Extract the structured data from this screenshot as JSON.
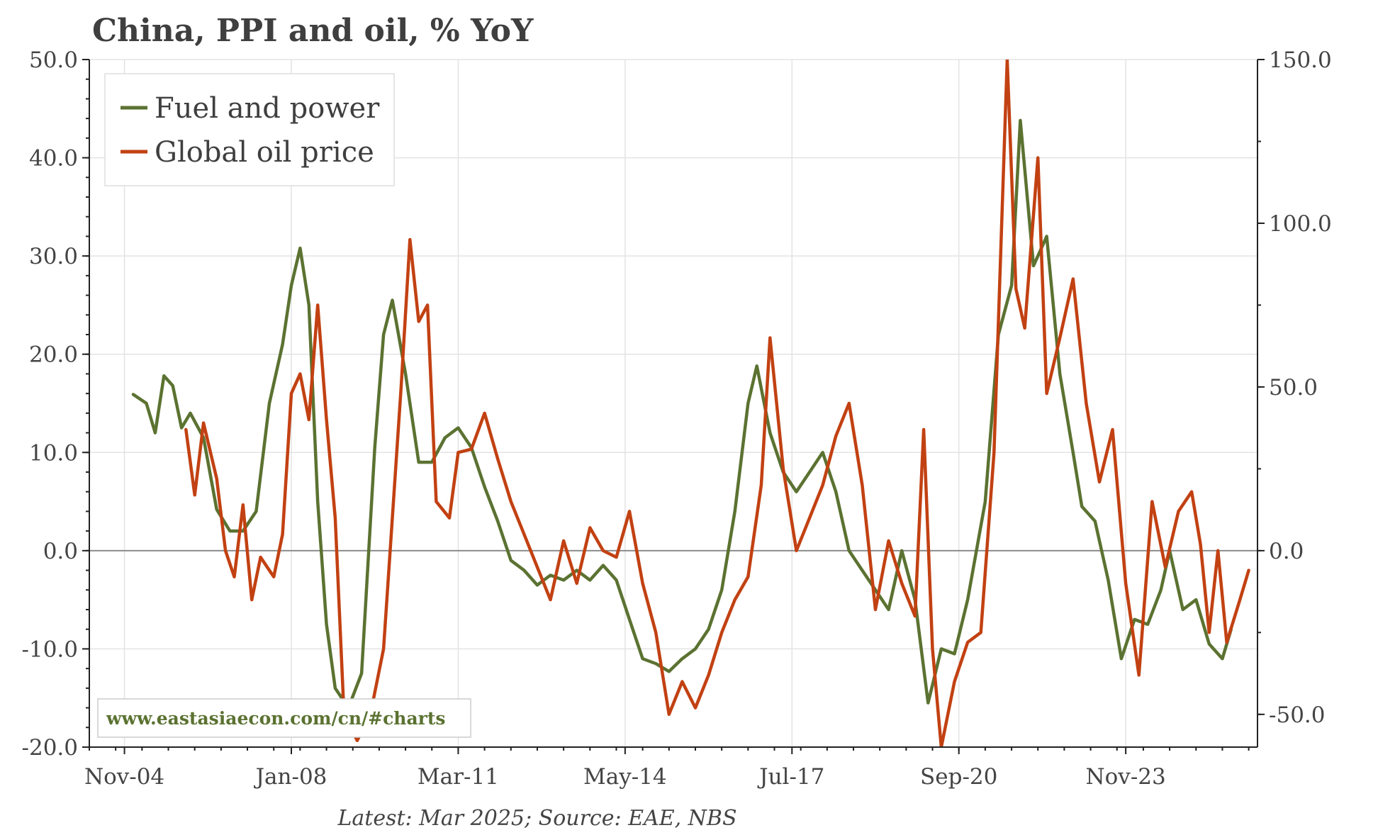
{
  "chart_data": {
    "type": "line",
    "title": "China, PPI and oil, % YoY",
    "source": "Latest: Mar 2025; Source: EAE, NBS",
    "watermark": "www.eastasiaecon.com/cn/#charts",
    "grid": true,
    "legend_position": "top-left",
    "x_range": [
      "2004-03",
      "2026-05"
    ],
    "x_ticks": [
      {
        "label": "Nov-04",
        "date": "2004-11"
      },
      {
        "label": "Jan-08",
        "date": "2008-01"
      },
      {
        "label": "Mar-11",
        "date": "2011-03"
      },
      {
        "label": "May-14",
        "date": "2014-05"
      },
      {
        "label": "Jul-17",
        "date": "2017-07"
      },
      {
        "label": "Sep-20",
        "date": "2020-09"
      },
      {
        "label": "Nov-23",
        "date": "2023-11"
      }
    ],
    "y_left": {
      "min": -20,
      "max": 50,
      "ticks": [
        "-20.0",
        "-10.0",
        "0.0",
        "10.0",
        "20.0",
        "30.0",
        "40.0",
        "50.0"
      ]
    },
    "y_right": {
      "min": -60,
      "max": 150,
      "ticks": [
        "-50.0",
        "0.0",
        "50.0",
        "100.0",
        "150.0"
      ]
    },
    "series": [
      {
        "name": "Fuel and power",
        "color": "#5b7231",
        "axis": "left",
        "points": [
          [
            "2005-01",
            15.9
          ],
          [
            "2005-04",
            15.0
          ],
          [
            "2005-06",
            12.0
          ],
          [
            "2005-08",
            17.8
          ],
          [
            "2005-10",
            16.8
          ],
          [
            "2005-12",
            12.5
          ],
          [
            "2006-02",
            14.0
          ],
          [
            "2006-05",
            11.5
          ],
          [
            "2006-08",
            4.2
          ],
          [
            "2006-11",
            2.0
          ],
          [
            "2007-02",
            2.0
          ],
          [
            "2007-05",
            4.0
          ],
          [
            "2007-08",
            15.0
          ],
          [
            "2007-11",
            21.0
          ],
          [
            "2008-01",
            27.0
          ],
          [
            "2008-03",
            30.8
          ],
          [
            "2008-05",
            25.0
          ],
          [
            "2008-07",
            5.0
          ],
          [
            "2008-09",
            -7.5
          ],
          [
            "2008-11",
            -14.0
          ],
          [
            "2009-02",
            -16.0
          ],
          [
            "2009-05",
            -12.5
          ],
          [
            "2009-08",
            10.5
          ],
          [
            "2009-10",
            22.0
          ],
          [
            "2009-12",
            25.5
          ],
          [
            "2010-03",
            18.0
          ],
          [
            "2010-06",
            9.0
          ],
          [
            "2010-09",
            9.0
          ],
          [
            "2010-12",
            11.5
          ],
          [
            "2011-03",
            12.5
          ],
          [
            "2011-06",
            10.5
          ],
          [
            "2011-09",
            6.5
          ],
          [
            "2011-12",
            3.0
          ],
          [
            "2012-03",
            -1.0
          ],
          [
            "2012-06",
            -2.0
          ],
          [
            "2012-09",
            -3.5
          ],
          [
            "2012-12",
            -2.5
          ],
          [
            "2013-03",
            -3.0
          ],
          [
            "2013-06",
            -2.0
          ],
          [
            "2013-09",
            -3.0
          ],
          [
            "2013-12",
            -1.5
          ],
          [
            "2014-03",
            -3.0
          ],
          [
            "2014-06",
            -7.0
          ],
          [
            "2014-09",
            -11.0
          ],
          [
            "2014-12",
            -11.5
          ],
          [
            "2015-03",
            -12.3
          ],
          [
            "2015-06",
            -11.0
          ],
          [
            "2015-09",
            -10.0
          ],
          [
            "2015-12",
            -8.0
          ],
          [
            "2016-03",
            -4.0
          ],
          [
            "2016-06",
            4.0
          ],
          [
            "2016-09",
            15.0
          ],
          [
            "2016-11",
            18.8
          ],
          [
            "2017-02",
            12.0
          ],
          [
            "2017-05",
            8.0
          ],
          [
            "2017-08",
            6.0
          ],
          [
            "2017-11",
            8.0
          ],
          [
            "2018-02",
            10.0
          ],
          [
            "2018-05",
            6.0
          ],
          [
            "2018-08",
            0.0
          ],
          [
            "2018-11",
            -2.0
          ],
          [
            "2019-02",
            -4.0
          ],
          [
            "2019-05",
            -6.0
          ],
          [
            "2019-08",
            0.0
          ],
          [
            "2019-11",
            -5.0
          ],
          [
            "2020-02",
            -15.5
          ],
          [
            "2020-05",
            -10.0
          ],
          [
            "2020-08",
            -10.5
          ],
          [
            "2020-11",
            -5.0
          ],
          [
            "2021-03",
            5.0
          ],
          [
            "2021-06",
            22.0
          ],
          [
            "2021-09",
            27.0
          ],
          [
            "2021-11",
            43.8
          ],
          [
            "2022-02",
            29.0
          ],
          [
            "2022-05",
            32.0
          ],
          [
            "2022-08",
            18.0
          ],
          [
            "2022-11",
            10.0
          ],
          [
            "2023-01",
            4.5
          ],
          [
            "2023-04",
            3.0
          ],
          [
            "2023-07",
            -3.0
          ],
          [
            "2023-10",
            -11.0
          ],
          [
            "2024-01",
            -7.0
          ],
          [
            "2024-04",
            -7.5
          ],
          [
            "2024-07",
            -4.0
          ],
          [
            "2024-09",
            0.0
          ],
          [
            "2024-12",
            -6.0
          ],
          [
            "2025-03",
            -5.0
          ],
          [
            "2025-06",
            -9.5
          ],
          [
            "2025-09",
            -11.0
          ],
          [
            "2025-11",
            -8.0
          ]
        ]
      },
      {
        "name": "Global oil price",
        "color": "#c24112",
        "axis": "right",
        "points": [
          [
            "2006-01",
            37.0
          ],
          [
            "2006-03",
            17.0
          ],
          [
            "2006-05",
            39.0
          ],
          [
            "2006-08",
            22.0
          ],
          [
            "2006-10",
            0.0
          ],
          [
            "2006-12",
            -8.0
          ],
          [
            "2007-02",
            14.0
          ],
          [
            "2007-04",
            -15.0
          ],
          [
            "2007-06",
            -2.0
          ],
          [
            "2007-09",
            -8.0
          ],
          [
            "2007-11",
            5.0
          ],
          [
            "2008-01",
            48.0
          ],
          [
            "2008-03",
            54.0
          ],
          [
            "2008-05",
            40.0
          ],
          [
            "2008-07",
            75.0
          ],
          [
            "2008-09",
            40.0
          ],
          [
            "2008-11",
            10.0
          ],
          [
            "2009-01",
            -50.0
          ],
          [
            "2009-04",
            -58.0
          ],
          [
            "2009-07",
            -50.0
          ],
          [
            "2009-10",
            -30.0
          ],
          [
            "2009-12",
            10.0
          ],
          [
            "2010-02",
            50.0
          ],
          [
            "2010-04",
            95.0
          ],
          [
            "2010-06",
            70.0
          ],
          [
            "2010-08",
            75.0
          ],
          [
            "2010-10",
            15.0
          ],
          [
            "2011-01",
            10.0
          ],
          [
            "2011-03",
            30.0
          ],
          [
            "2011-06",
            31.0
          ],
          [
            "2011-09",
            42.0
          ],
          [
            "2011-12",
            28.0
          ],
          [
            "2012-03",
            15.0
          ],
          [
            "2012-06",
            5.0
          ],
          [
            "2012-09",
            -5.0
          ],
          [
            "2012-12",
            -15.0
          ],
          [
            "2013-03",
            3.0
          ],
          [
            "2013-06",
            -10.0
          ],
          [
            "2013-09",
            7.0
          ],
          [
            "2013-12",
            0.0
          ],
          [
            "2014-03",
            -2.0
          ],
          [
            "2014-06",
            12.0
          ],
          [
            "2014-09",
            -10.0
          ],
          [
            "2014-12",
            -25.0
          ],
          [
            "2015-03",
            -50.0
          ],
          [
            "2015-06",
            -40.0
          ],
          [
            "2015-09",
            -48.0
          ],
          [
            "2015-12",
            -38.0
          ],
          [
            "2016-03",
            -25.0
          ],
          [
            "2016-06",
            -15.0
          ],
          [
            "2016-09",
            -8.0
          ],
          [
            "2016-12",
            20.0
          ],
          [
            "2017-02",
            65.0
          ],
          [
            "2017-05",
            25.0
          ],
          [
            "2017-08",
            0.0
          ],
          [
            "2017-11",
            10.0
          ],
          [
            "2018-02",
            20.0
          ],
          [
            "2018-05",
            35.0
          ],
          [
            "2018-08",
            45.0
          ],
          [
            "2018-11",
            20.0
          ],
          [
            "2019-02",
            -18.0
          ],
          [
            "2019-05",
            3.0
          ],
          [
            "2019-08",
            -10.0
          ],
          [
            "2019-11",
            -20.0
          ],
          [
            "2020-01",
            37.0
          ],
          [
            "2020-03",
            -30.0
          ],
          [
            "2020-05",
            -60.0
          ],
          [
            "2020-08",
            -40.0
          ],
          [
            "2020-11",
            -28.0
          ],
          [
            "2021-02",
            -25.0
          ],
          [
            "2021-05",
            30.0
          ],
          [
            "2021-08",
            150.0
          ],
          [
            "2021-10",
            80.0
          ],
          [
            "2021-12",
            68.0
          ],
          [
            "2022-03",
            120.0
          ],
          [
            "2022-05",
            48.0
          ],
          [
            "2022-08",
            65.0
          ],
          [
            "2022-11",
            83.0
          ],
          [
            "2023-02",
            45.0
          ],
          [
            "2023-05",
            21.0
          ],
          [
            "2023-08",
            37.0
          ],
          [
            "2023-11",
            -10.0
          ],
          [
            "2024-02",
            -38.0
          ],
          [
            "2024-05",
            15.0
          ],
          [
            "2024-08",
            -5.0
          ],
          [
            "2024-11",
            12.0
          ],
          [
            "2025-02",
            18.0
          ],
          [
            "2025-04",
            2.0
          ],
          [
            "2025-06",
            -25.0
          ],
          [
            "2025-08",
            0.0
          ],
          [
            "2025-10",
            -28.0
          ],
          [
            "2026-01",
            -15.0
          ],
          [
            "2026-03",
            -6.0
          ]
        ]
      }
    ]
  }
}
